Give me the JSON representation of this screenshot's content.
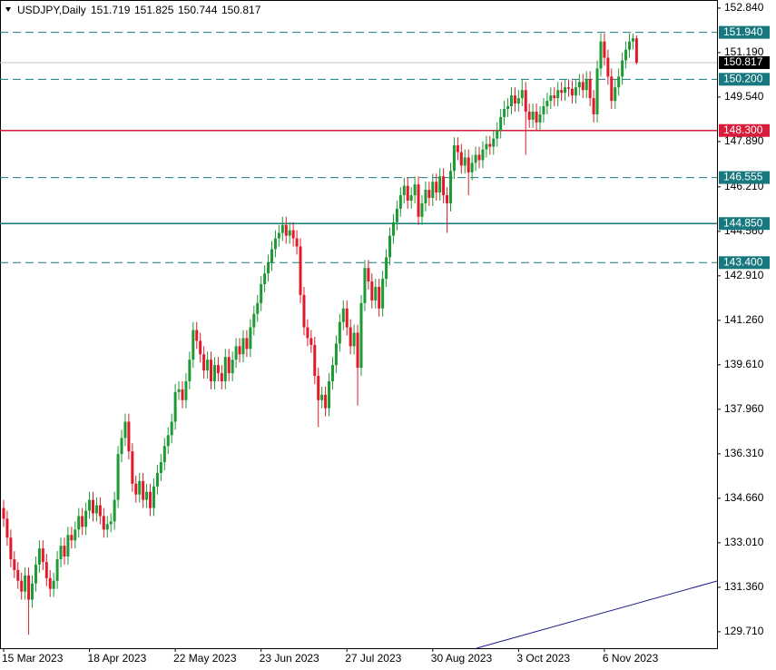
{
  "chart_data": {
    "type": "candlestick",
    "symbol": "USDJPY,Daily",
    "categories": [
      "15 Mar 2023",
      null,
      null,
      null,
      null,
      null,
      null,
      null,
      null,
      null,
      null,
      null,
      null,
      null,
      null,
      null,
      null,
      null,
      null,
      null,
      null,
      null,
      null,
      null,
      "18 Apr 2023",
      null,
      null,
      null,
      null,
      null,
      null,
      null,
      null,
      null,
      null,
      null,
      null,
      null,
      null,
      null,
      null,
      null,
      null,
      null,
      null,
      null,
      null,
      null,
      "22 May 2023",
      null,
      null,
      null,
      null,
      null,
      null,
      null,
      null,
      null,
      null,
      null,
      null,
      null,
      null,
      null,
      null,
      null,
      null,
      null,
      null,
      null,
      null,
      null,
      "23 Jun 2023",
      null,
      null,
      null,
      null,
      null,
      null,
      null,
      null,
      null,
      null,
      null,
      null,
      null,
      null,
      null,
      null,
      null,
      null,
      null,
      null,
      null,
      null,
      null,
      "27 Jul 2023",
      null,
      null,
      null,
      null,
      null,
      null,
      null,
      null,
      null,
      null,
      null,
      null,
      null,
      null,
      null,
      null,
      null,
      null,
      null,
      null,
      null,
      null,
      null,
      "30 Aug 2023",
      null,
      null,
      null,
      null,
      null,
      null,
      null,
      null,
      null,
      null,
      null,
      null,
      null,
      null,
      null,
      null,
      null,
      null,
      null,
      null,
      null,
      null,
      null,
      "3 Oct 2023",
      null,
      null,
      null,
      null,
      null,
      null,
      null,
      null,
      null,
      null,
      null,
      null,
      null,
      null,
      null,
      null,
      null,
      null,
      null,
      null,
      null,
      null,
      null,
      "6 Nov 2023",
      null,
      null,
      null,
      null,
      null,
      null,
      null,
      null,
      null
    ],
    "candles": [
      [
        134.3,
        134.6,
        133.6,
        133.9
      ],
      [
        133.9,
        134.2,
        132.9,
        133.2
      ],
      [
        133.2,
        133.5,
        132.1,
        132.4
      ],
      [
        132.4,
        132.7,
        131.7,
        132.0
      ],
      [
        132.0,
        132.3,
        131.3,
        131.6
      ],
      [
        131.6,
        131.9,
        130.9,
        131.2
      ],
      [
        131.2,
        132.1,
        130.9,
        131.8
      ],
      [
        131.8,
        132.1,
        129.6,
        130.9
      ],
      [
        130.9,
        131.8,
        130.6,
        131.5
      ],
      [
        131.5,
        132.5,
        131.2,
        132.2
      ],
      [
        132.2,
        133.1,
        131.9,
        132.8
      ],
      [
        132.8,
        133.1,
        132.0,
        132.3
      ],
      [
        132.3,
        132.6,
        131.4,
        131.7
      ],
      [
        131.7,
        132.0,
        131.0,
        131.3
      ],
      [
        131.3,
        131.9,
        131.0,
        131.6
      ],
      [
        131.6,
        132.7,
        131.3,
        132.4
      ],
      [
        132.4,
        133.2,
        132.1,
        132.9
      ],
      [
        132.9,
        133.2,
        132.2,
        132.5
      ],
      [
        132.5,
        133.6,
        132.2,
        133.3
      ],
      [
        133.3,
        133.6,
        132.8,
        133.1
      ],
      [
        133.1,
        133.8,
        132.8,
        133.5
      ],
      [
        133.5,
        134.3,
        133.2,
        134.0
      ],
      [
        134.0,
        134.3,
        133.3,
        133.6
      ],
      [
        133.6,
        134.5,
        133.3,
        134.2
      ],
      [
        134.2,
        134.9,
        133.9,
        134.6
      ],
      [
        134.6,
        134.9,
        133.8,
        134.1
      ],
      [
        134.1,
        134.7,
        133.8,
        134.4
      ],
      [
        134.4,
        134.7,
        133.7,
        134.0
      ],
      [
        134.0,
        134.3,
        133.2,
        133.5
      ],
      [
        133.5,
        134.0,
        133.2,
        133.7
      ],
      [
        133.7,
        134.1,
        133.4,
        133.8
      ],
      [
        133.8,
        134.9,
        133.5,
        134.6
      ],
      [
        134.6,
        136.6,
        134.3,
        136.3
      ],
      [
        136.3,
        137.2,
        136.0,
        136.9
      ],
      [
        136.9,
        137.8,
        136.6,
        137.5
      ],
      [
        137.5,
        137.8,
        136.1,
        136.4
      ],
      [
        136.4,
        136.7,
        134.9,
        135.2
      ],
      [
        135.2,
        135.5,
        134.5,
        134.8
      ],
      [
        134.8,
        135.6,
        134.5,
        135.3
      ],
      [
        135.3,
        135.6,
        134.3,
        134.6
      ],
      [
        134.6,
        135.2,
        134.3,
        134.9
      ],
      [
        134.9,
        135.2,
        134.0,
        134.3
      ],
      [
        134.3,
        135.4,
        134.0,
        135.1
      ],
      [
        135.1,
        135.9,
        134.8,
        135.6
      ],
      [
        135.6,
        136.3,
        135.3,
        136.0
      ],
      [
        136.0,
        136.9,
        135.7,
        136.6
      ],
      [
        136.6,
        137.3,
        136.3,
        137.0
      ],
      [
        137.0,
        137.8,
        136.7,
        137.5
      ],
      [
        137.5,
        138.9,
        137.2,
        138.6
      ],
      [
        138.6,
        139.0,
        138.3,
        138.7
      ],
      [
        138.7,
        139.0,
        138.0,
        138.3
      ],
      [
        138.3,
        139.3,
        138.0,
        139.0
      ],
      [
        139.0,
        140.1,
        138.7,
        139.8
      ],
      [
        139.8,
        141.2,
        139.5,
        140.9
      ],
      [
        140.9,
        141.2,
        140.2,
        140.5
      ],
      [
        140.5,
        140.8,
        139.7,
        140.0
      ],
      [
        140.0,
        140.3,
        139.1,
        139.4
      ],
      [
        139.4,
        140.1,
        139.1,
        139.8
      ],
      [
        139.8,
        140.1,
        138.7,
        139.0
      ],
      [
        139.0,
        139.9,
        138.7,
        139.6
      ],
      [
        139.6,
        139.9,
        139.0,
        139.3
      ],
      [
        139.3,
        139.6,
        138.7,
        139.0
      ],
      [
        139.0,
        140.2,
        138.7,
        139.9
      ],
      [
        139.9,
        140.2,
        139.0,
        139.3
      ],
      [
        139.3,
        140.1,
        139.0,
        139.8
      ],
      [
        139.8,
        140.6,
        139.5,
        140.3
      ],
      [
        140.3,
        140.6,
        139.7,
        140.0
      ],
      [
        140.0,
        140.9,
        139.7,
        140.6
      ],
      [
        140.6,
        140.9,
        139.9,
        140.2
      ],
      [
        140.2,
        141.3,
        139.9,
        141.0
      ],
      [
        141.0,
        141.8,
        140.7,
        141.5
      ],
      [
        141.5,
        142.2,
        141.2,
        141.9
      ],
      [
        141.9,
        142.9,
        141.6,
        142.6
      ],
      [
        142.6,
        143.3,
        142.3,
        143.0
      ],
      [
        143.0,
        143.7,
        142.7,
        143.4
      ],
      [
        143.4,
        144.2,
        143.1,
        143.9
      ],
      [
        143.9,
        144.6,
        143.6,
        144.3
      ],
      [
        144.3,
        144.8,
        144.0,
        144.5
      ],
      [
        144.5,
        145.1,
        144.2,
        144.8
      ],
      [
        144.8,
        145.1,
        144.1,
        144.4
      ],
      [
        144.4,
        144.9,
        144.1,
        144.6
      ],
      [
        144.6,
        144.9,
        144.0,
        144.3
      ],
      [
        144.3,
        144.6,
        143.7,
        144.0
      ],
      [
        144.0,
        144.3,
        141.9,
        142.2
      ],
      [
        142.2,
        142.5,
        140.7,
        141.0
      ],
      [
        141.0,
        141.3,
        140.3,
        140.6
      ],
      [
        140.6,
        140.9,
        140.05,
        140.35
      ],
      [
        140.35,
        140.65,
        138.9,
        139.2
      ],
      [
        139.2,
        139.5,
        137.3,
        138.3
      ],
      [
        138.3,
        138.8,
        138.0,
        138.5
      ],
      [
        138.5,
        138.8,
        137.7,
        138.0
      ],
      [
        138.0,
        139.3,
        137.7,
        139.0
      ],
      [
        139.0,
        139.9,
        138.7,
        139.6
      ],
      [
        139.6,
        140.7,
        139.3,
        140.4
      ],
      [
        140.4,
        141.5,
        140.1,
        141.2
      ],
      [
        141.2,
        142.0,
        140.9,
        141.7
      ],
      [
        141.7,
        142.0,
        140.7,
        141.0
      ],
      [
        141.0,
        141.3,
        140.0,
        140.3
      ],
      [
        140.3,
        141.1,
        140.0,
        140.8
      ],
      [
        140.8,
        141.1,
        138.1,
        139.5
      ],
      [
        139.5,
        142.2,
        139.2,
        141.9
      ],
      [
        141.9,
        143.5,
        141.6,
        143.2
      ],
      [
        143.2,
        143.5,
        142.4,
        142.7
      ],
      [
        142.7,
        143.0,
        141.7,
        142.0
      ],
      [
        142.0,
        142.8,
        141.7,
        142.5
      ],
      [
        142.5,
        142.8,
        141.4,
        141.7
      ],
      [
        141.7,
        143.1,
        141.4,
        142.8
      ],
      [
        142.8,
        143.9,
        142.5,
        143.6
      ],
      [
        143.6,
        144.7,
        143.3,
        144.4
      ],
      [
        144.4,
        145.2,
        144.1,
        144.9
      ],
      [
        144.9,
        145.7,
        144.6,
        145.4
      ],
      [
        145.4,
        146.2,
        145.1,
        145.9
      ],
      [
        145.9,
        146.55,
        145.6,
        146.25
      ],
      [
        146.25,
        146.55,
        145.4,
        145.7
      ],
      [
        145.7,
        146.2,
        145.4,
        145.9
      ],
      [
        145.9,
        146.6,
        145.6,
        146.3
      ],
      [
        146.3,
        146.6,
        144.8,
        145.1
      ],
      [
        145.1,
        145.9,
        144.8,
        145.6
      ],
      [
        145.6,
        146.4,
        145.3,
        146.1
      ],
      [
        146.1,
        146.4,
        145.5,
        145.8
      ],
      [
        145.8,
        146.7,
        145.5,
        146.4
      ],
      [
        146.4,
        146.7,
        145.7,
        146.0
      ],
      [
        146.0,
        146.9,
        145.7,
        146.6
      ],
      [
        146.6,
        146.9,
        145.6,
        145.9
      ],
      [
        145.9,
        146.2,
        144.5,
        145.6
      ],
      [
        145.6,
        147.1,
        145.3,
        146.8
      ],
      [
        146.8,
        148.05,
        146.5,
        147.75
      ],
      [
        147.75,
        148.05,
        147.2,
        147.5
      ],
      [
        147.5,
        147.8,
        146.7,
        147.0
      ],
      [
        147.0,
        147.6,
        146.7,
        147.3
      ],
      [
        147.3,
        147.6,
        145.9,
        146.75
      ],
      [
        146.75,
        147.4,
        146.45,
        147.1
      ],
      [
        147.1,
        147.7,
        146.8,
        147.4
      ],
      [
        147.4,
        147.7,
        146.9,
        147.2
      ],
      [
        147.2,
        147.9,
        146.9,
        147.6
      ],
      [
        147.6,
        148.1,
        147.3,
        147.8
      ],
      [
        147.8,
        148.1,
        147.4,
        147.7
      ],
      [
        147.7,
        148.3,
        147.4,
        148.0
      ],
      [
        148.0,
        148.6,
        147.7,
        148.3
      ],
      [
        148.3,
        149.1,
        148.0,
        148.8
      ],
      [
        148.8,
        149.4,
        148.5,
        149.1
      ],
      [
        149.1,
        149.5,
        148.8,
        149.2
      ],
      [
        149.2,
        149.9,
        148.9,
        149.6
      ],
      [
        149.6,
        149.9,
        149.0,
        149.3
      ],
      [
        149.3,
        149.8,
        149.0,
        149.5
      ],
      [
        149.5,
        150.2,
        149.2,
        149.8
      ],
      [
        149.8,
        150.1,
        147.4,
        149.0
      ],
      [
        149.0,
        149.3,
        148.4,
        148.7
      ],
      [
        148.7,
        149.3,
        148.4,
        149.0
      ],
      [
        149.0,
        149.3,
        148.3,
        148.6
      ],
      [
        148.6,
        149.2,
        148.3,
        148.9
      ],
      [
        148.9,
        149.5,
        148.6,
        149.2
      ],
      [
        149.2,
        149.7,
        148.9,
        149.4
      ],
      [
        149.4,
        149.9,
        149.1,
        149.6
      ],
      [
        149.6,
        149.9,
        149.2,
        149.5
      ],
      [
        149.5,
        150.1,
        149.2,
        149.8
      ],
      [
        149.8,
        150.1,
        149.4,
        149.7
      ],
      [
        149.7,
        150.2,
        149.4,
        149.9
      ],
      [
        149.9,
        150.2,
        149.55,
        149.85
      ],
      [
        149.85,
        150.15,
        149.3,
        149.6
      ],
      [
        149.6,
        150.2,
        149.3,
        149.9
      ],
      [
        149.9,
        150.4,
        149.6,
        150.1
      ],
      [
        150.1,
        150.4,
        149.5,
        149.8
      ],
      [
        149.8,
        150.5,
        149.5,
        150.2
      ],
      [
        150.2,
        150.5,
        149.2,
        149.5
      ],
      [
        149.5,
        149.8,
        148.6,
        148.9
      ],
      [
        148.9,
        150.9,
        148.6,
        150.6
      ],
      [
        150.6,
        151.9,
        150.3,
        151.6
      ],
      [
        151.6,
        151.9,
        150.7,
        151.0
      ],
      [
        151.0,
        151.3,
        150.0,
        150.3
      ],
      [
        150.3,
        150.6,
        149.1,
        149.4
      ],
      [
        149.4,
        150.2,
        149.1,
        149.9
      ],
      [
        149.9,
        150.6,
        149.6,
        150.3
      ],
      [
        150.3,
        151.2,
        150.0,
        150.9
      ],
      [
        150.9,
        151.6,
        150.6,
        151.3
      ],
      [
        151.3,
        151.9,
        151.0,
        151.6
      ],
      [
        151.6,
        151.9,
        151.3,
        151.719
      ],
      [
        151.719,
        151.825,
        150.744,
        150.817
      ]
    ],
    "up_color": "#1d9a34",
    "down_color": "#e0192b",
    "ylim": [
      129.1,
      153.14
    ],
    "yticks": [
      {
        "value": 152.84,
        "label": "152.840"
      },
      {
        "value": 151.19,
        "label": "151.190"
      },
      {
        "value": 149.54,
        "label": "149.540"
      },
      {
        "value": 147.89,
        "label": "147.890"
      },
      {
        "value": 146.21,
        "label": "146.210"
      },
      {
        "value": 144.56,
        "label": "144.560"
      },
      {
        "value": 142.91,
        "label": "142.910"
      },
      {
        "value": 141.26,
        "label": "141.260"
      },
      {
        "value": 139.61,
        "label": "139.610"
      },
      {
        "value": 137.96,
        "label": "137.960"
      },
      {
        "value": 136.31,
        "label": "136.310"
      },
      {
        "value": 134.66,
        "label": "134.660"
      },
      {
        "value": 133.01,
        "label": "133.010"
      },
      {
        "value": 131.36,
        "label": "131.360"
      },
      {
        "value": 129.71,
        "label": "129.710"
      }
    ],
    "levels": [
      {
        "value": 151.94,
        "label": "151.940",
        "color": "#17797f",
        "dash": true
      },
      {
        "value": 150.2,
        "label": "150.200",
        "color": "#17797f",
        "dash": true
      },
      {
        "value": 148.3,
        "label": "148.300",
        "color": "#d91c3a",
        "dash": false
      },
      {
        "value": 146.555,
        "color": "#17797f",
        "dash": true
      },
      {
        "value": 144.85,
        "label": "144.850",
        "color": "#17797f",
        "dash": false
      },
      {
        "value": 143.4,
        "label": "143.400",
        "color": "#17797f",
        "dash": true
      }
    ]
  }
}
